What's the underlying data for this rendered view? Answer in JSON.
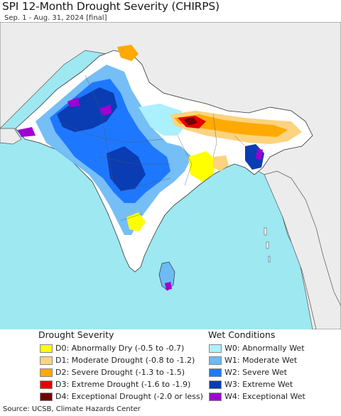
{
  "title": "SPI 12-Month Drought Severity (CHIRPS)",
  "subtitle": "Sep. 1 - Aug. 31, 2024 [final]",
  "colors": {
    "ocean": "#9ee8f2",
    "land_neutral": "#ffffff",
    "outside_land": "#ececec",
    "border": "#333333"
  },
  "legend": {
    "drought": {
      "heading": "Drought Severity",
      "items": [
        {
          "label": "D0: Abnormally Dry (-0.5 to -0.7)",
          "color": "#ffff00"
        },
        {
          "label": "D1: Moderate Drought (-0.8 to -1.2)",
          "color": "#fcd37f"
        },
        {
          "label": "D2: Severe Drought (-1.3 to -1.5)",
          "color": "#ffaa00"
        },
        {
          "label": "D3: Extreme Drought (-1.6 to -1.9)",
          "color": "#e60000"
        },
        {
          "label": "D4: Exceptional Drought (-2.0 or less)",
          "color": "#730000"
        }
      ]
    },
    "wet": {
      "heading": "Wet Conditions",
      "items": [
        {
          "label": "W0: Abnormally Wet",
          "color": "#aaf0ff"
        },
        {
          "label": "W1: Moderate Wet",
          "color": "#6ebaf5"
        },
        {
          "label": "W2: Severe Wet",
          "color": "#1e78ff"
        },
        {
          "label": "W3: Extreme Wet",
          "color": "#0a3cb4"
        },
        {
          "label": "W4: Exceptional Wet",
          "color": "#a000d2"
        }
      ]
    }
  },
  "source": "Source: UCSB, Climate Hazards Center"
}
